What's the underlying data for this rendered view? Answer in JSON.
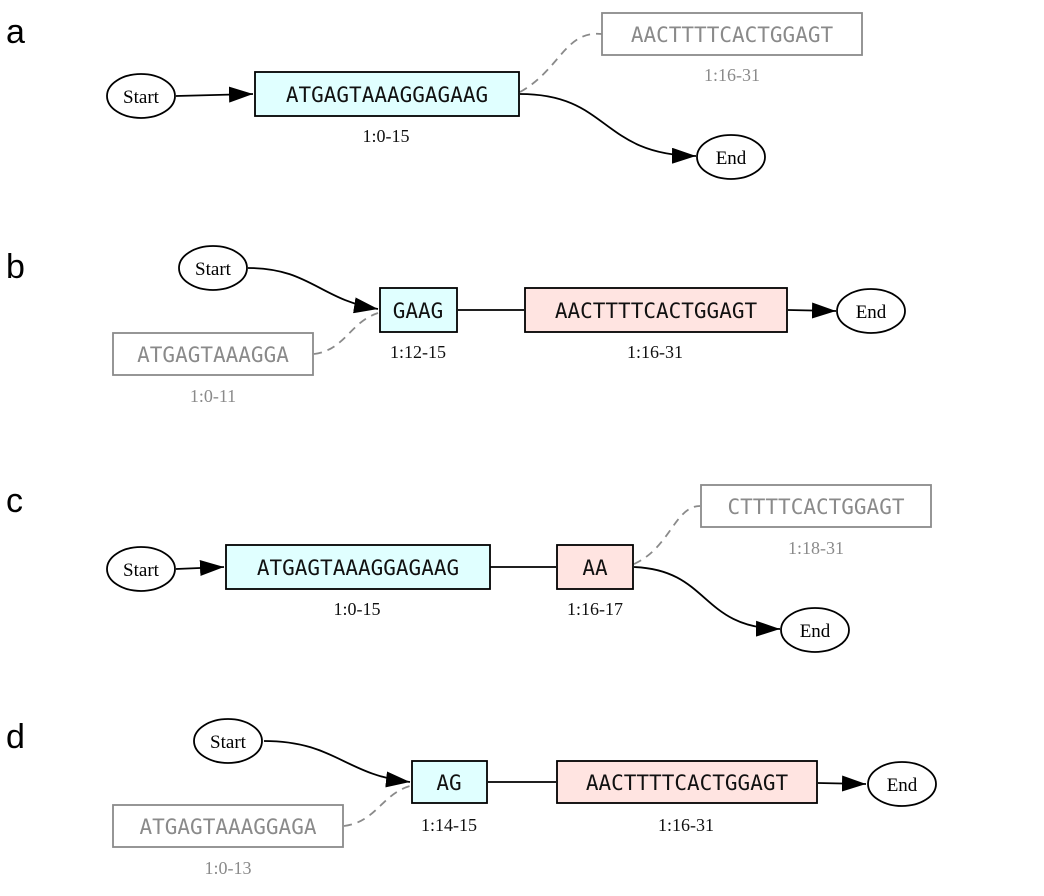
{
  "panels": {
    "a": {
      "label": "a",
      "start": "Start",
      "end": "End",
      "main1": {
        "seq": "ATGAGTAAAGGAGAAG",
        "coord": "1:0-15"
      },
      "alt": {
        "seq": "AACTTTTCACTGGAGT",
        "coord": "1:16-31"
      }
    },
    "b": {
      "label": "b",
      "start": "Start",
      "end": "End",
      "alt": {
        "seq": "ATGAGTAAAGGA",
        "coord": "1:0-11"
      },
      "main1": {
        "seq": "GAAG",
        "coord": "1:12-15"
      },
      "main2": {
        "seq": "AACTTTTCACTGGAGT",
        "coord": "1:16-31"
      }
    },
    "c": {
      "label": "c",
      "start": "Start",
      "end": "End",
      "main1": {
        "seq": "ATGAGTAAAGGAGAAG",
        "coord": "1:0-15"
      },
      "main2": {
        "seq": "AA",
        "coord": "1:16-17"
      },
      "alt": {
        "seq": "CTTTTCACTGGAGT",
        "coord": "1:18-31"
      }
    },
    "d": {
      "label": "d",
      "start": "Start",
      "end": "End",
      "alt": {
        "seq": "ATGAGTAAAGGAGA",
        "coord": "1:0-13"
      },
      "main1": {
        "seq": "AG",
        "coord": "1:14-15"
      },
      "main2": {
        "seq": "AACTTTTCACTGGAGT",
        "coord": "1:16-31"
      }
    }
  },
  "colors": {
    "main_box_cyan": "#e0ffff",
    "main_box_pink": "#ffe4e1",
    "alt_gray": "#8a8a8a"
  }
}
